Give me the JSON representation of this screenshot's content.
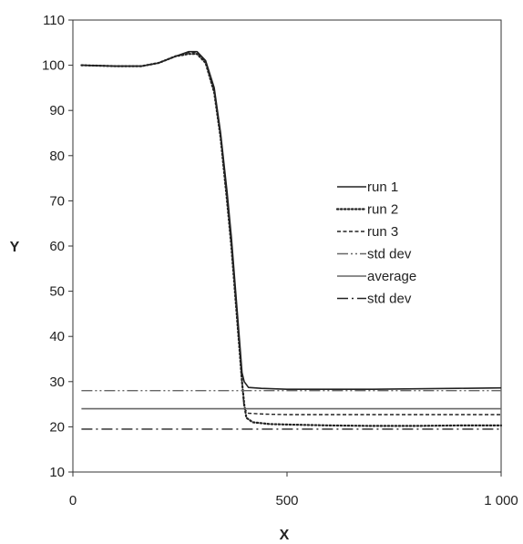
{
  "chart_data": {
    "type": "line",
    "xlabel": "X",
    "ylabel": "Y",
    "xlim": [
      0,
      1000
    ],
    "ylim": [
      10,
      110
    ],
    "x_ticks": [
      0,
      500,
      1000
    ],
    "x_tick_labels": [
      "0",
      "500",
      "1 000"
    ],
    "y_ticks": [
      10,
      20,
      30,
      40,
      50,
      60,
      70,
      80,
      90,
      100,
      110
    ],
    "y_tick_labels": [
      "10",
      "20",
      "30",
      "40",
      "50",
      "60",
      "70",
      "80",
      "90",
      "100",
      "110"
    ],
    "grid": false,
    "legend_position": "right",
    "series": [
      {
        "name": "run 1",
        "style": "solid",
        "color": "#222222",
        "x": [
          20,
          100,
          160,
          200,
          240,
          270,
          290,
          310,
          330,
          345,
          360,
          370,
          380,
          390,
          395,
          400,
          410,
          440,
          500,
          600,
          700,
          800,
          900,
          1000
        ],
        "y": [
          100,
          99.8,
          99.8,
          100.5,
          102,
          103,
          103,
          101,
          95,
          85,
          72,
          62,
          50,
          38,
          32,
          30,
          28.7,
          28.5,
          28.3,
          28.3,
          28.3,
          28.4,
          28.5,
          28.6
        ]
      },
      {
        "name": "run 2",
        "style": "dotted",
        "color": "#222222",
        "x": [
          20,
          100,
          160,
          200,
          240,
          270,
          290,
          310,
          330,
          345,
          360,
          370,
          380,
          390,
          395,
          400,
          405,
          420,
          460,
          500,
          600,
          700,
          800,
          900,
          1000
        ],
        "y": [
          100,
          99.8,
          99.8,
          100.5,
          102,
          102.5,
          102.5,
          100.5,
          94,
          84,
          70,
          60,
          48,
          36,
          30,
          25,
          22,
          21,
          20.6,
          20.5,
          20.3,
          20.2,
          20.2,
          20.3,
          20.3
        ]
      },
      {
        "name": "run 3",
        "style": "dashed",
        "color": "#222222",
        "x": [
          20,
          100,
          160,
          200,
          240,
          270,
          290,
          310,
          330,
          345,
          360,
          370,
          380,
          390,
          395,
          400,
          410,
          450,
          500,
          600,
          700,
          800,
          900,
          1000
        ],
        "y": [
          100,
          99.8,
          99.8,
          100.5,
          102,
          102.8,
          102.8,
          100.8,
          94.5,
          84.5,
          71,
          61,
          49,
          37,
          30,
          24,
          23,
          22.8,
          22.7,
          22.7,
          22.7,
          22.7,
          22.7,
          22.7
        ]
      },
      {
        "name": "std dev",
        "style": "dash-dot-dot",
        "color": "#666666",
        "x": [
          20,
          1000
        ],
        "y": [
          28,
          28
        ]
      },
      {
        "name": "average",
        "style": "solid",
        "color": "#666666",
        "x": [
          20,
          1000
        ],
        "y": [
          24,
          24
        ]
      },
      {
        "name": "std dev",
        "style": "dash-dot",
        "color": "#222222",
        "x": [
          20,
          1000
        ],
        "y": [
          19.5,
          19.5
        ]
      }
    ]
  }
}
